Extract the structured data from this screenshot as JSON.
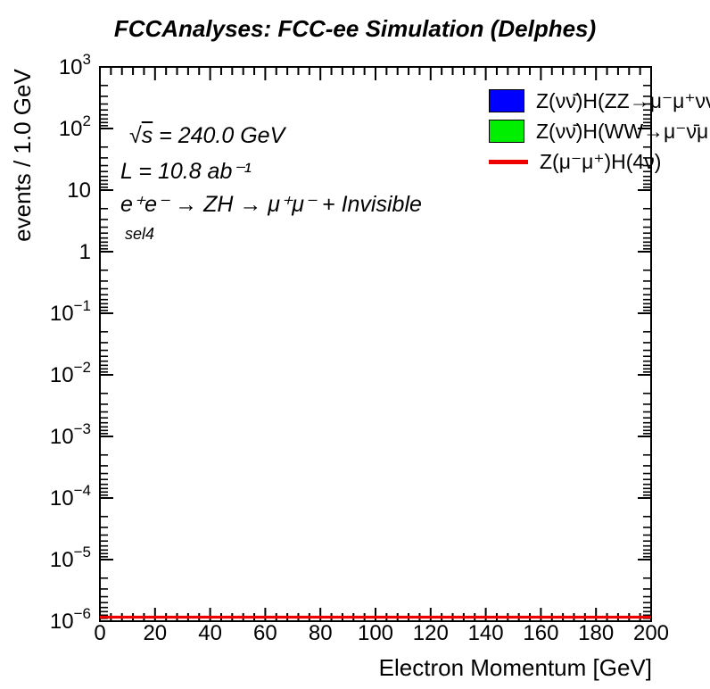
{
  "title": "FCCAnalyses: FCC-ee Simulation (Delphes)",
  "annotations": {
    "radical": "√",
    "radicand": "s",
    "energy_rest": " = 240.0 GeV",
    "luminosity": "L = 10.8 ab⁻¹",
    "process": "e⁺e⁻ → ZH → μ⁺μ⁻ + Invisible",
    "selection": "sel4"
  },
  "legend": {
    "entries": [
      {
        "swatch": "box",
        "color": "#0000ff",
        "label": "Z(νν̄)H(ZZ→μ⁻μ⁺νν̄"
      },
      {
        "swatch": "box",
        "color": "#00ee00",
        "label": "Z(νν̄)H(WW→μ⁻ν̄μ"
      },
      {
        "swatch": "line",
        "color": "#ee0000",
        "label": "Z(μ⁻μ⁺)H(4ν)"
      }
    ]
  },
  "chart_data": {
    "type": "line",
    "title": "FCCAnalyses: FCC-ee Simulation (Delphes)",
    "xlabel": "Electron Momentum [GeV]",
    "ylabel": "events / 1.0 GeV",
    "xlim": [
      0,
      200
    ],
    "x_tick_step": 20,
    "x_minor_step": 4,
    "yscale": "log",
    "ylim": [
      1e-06,
      1000
    ],
    "grid": false,
    "legend_position": "top-right",
    "x_tick_labels": [
      "0",
      "20",
      "40",
      "60",
      "80",
      "100",
      "120",
      "140",
      "160",
      "180",
      "200"
    ],
    "y_tick_labels": [
      {
        "base": "10",
        "exp": "3"
      },
      {
        "base": "10",
        "exp": "2"
      },
      {
        "base": "10",
        "exp": ""
      },
      {
        "base": "1",
        "exp": ""
      },
      {
        "base": "10",
        "exp": "−1"
      },
      {
        "base": "10",
        "exp": "−2"
      },
      {
        "base": "10",
        "exp": "−3"
      },
      {
        "base": "10",
        "exp": "−4"
      },
      {
        "base": "10",
        "exp": "−5"
      },
      {
        "base": "10",
        "exp": "−6"
      }
    ],
    "series": [
      {
        "name": "Z(νν̄)H(ZZ→μ⁻μ⁺νν̄",
        "style": "filled_histogram",
        "color": "#0000ff",
        "x": [],
        "y": []
      },
      {
        "name": "Z(νν̄)H(WW→μ⁻ν̄μ",
        "style": "filled_histogram",
        "color": "#00ee00",
        "x": [],
        "y": []
      },
      {
        "name": "Z(μ⁻μ⁺)H(4ν)",
        "style": "line",
        "color": "#ee0000",
        "x": [
          0,
          200
        ],
        "y": [
          1e-06,
          1e-06
        ]
      }
    ]
  }
}
